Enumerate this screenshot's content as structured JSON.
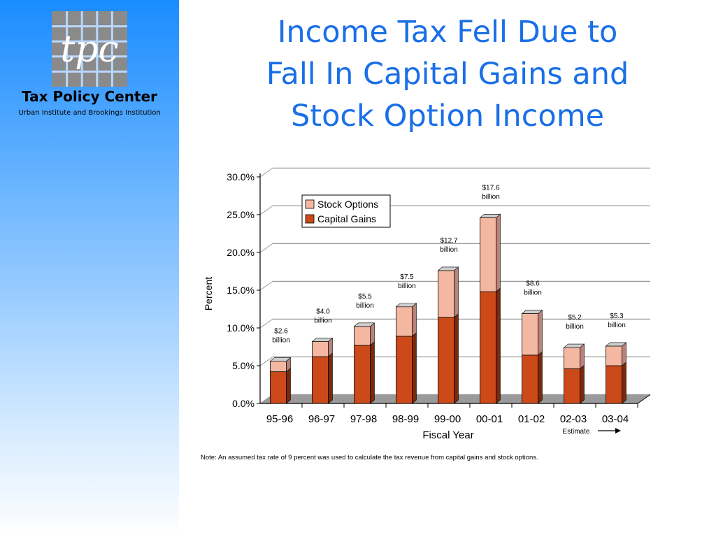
{
  "header": {
    "org_name": "Tax Policy Center",
    "org_sub": "Urban Institute and Brookings Institution",
    "logo_text": "tpc"
  },
  "title_lines": [
    "Income Tax Fell Due to",
    "Fall In Capital Gains and",
    "Stock Option Income"
  ],
  "colors": {
    "title": "#1a6fe8",
    "stock_options": "#f4b8a2",
    "capital_gains": "#cc4a1a",
    "sidebar_top": "#1a8cff"
  },
  "note": "Note: An assumed tax rate of 9 percent was used to calculate the tax revenue from capital gains and stock options.",
  "chart_data": {
    "type": "bar",
    "stacked": true,
    "categories": [
      "95-96",
      "96-97",
      "97-98",
      "98-99",
      "99-00",
      "00-01",
      "01-02",
      "02-03",
      "03-04"
    ],
    "series": [
      {
        "name": "Capital Gains",
        "values": [
          4.2,
          6.2,
          7.7,
          8.9,
          11.4,
          14.8,
          6.4,
          4.6,
          5.0
        ]
      },
      {
        "name": "Stock Options",
        "values": [
          1.4,
          2.0,
          2.5,
          3.9,
          6.2,
          9.8,
          5.5,
          2.8,
          2.6
        ]
      }
    ],
    "bar_labels": [
      [
        "$2.6",
        "billion"
      ],
      [
        "$4.0",
        "billion"
      ],
      [
        "$5.5",
        "billion"
      ],
      [
        "$7.5",
        "billion"
      ],
      [
        "$12.7",
        "billion"
      ],
      [
        "$17.6",
        "billion"
      ],
      [
        "$8.6",
        "billion"
      ],
      [
        "$5.2",
        "billion"
      ],
      [
        "$5.3",
        "billion"
      ]
    ],
    "ylim": [
      0,
      30
    ],
    "yticks": [
      "0.0%",
      "5.0%",
      "10.0%",
      "15.0%",
      "20.0%",
      "25.0%",
      "30.0%"
    ],
    "xlabel": "Fiscal Year",
    "ylabel": "Percent",
    "estimate_label": "Estimate",
    "legend": [
      "Stock Options",
      "Capital Gains"
    ],
    "legend_position": "top-left",
    "grid": true
  }
}
